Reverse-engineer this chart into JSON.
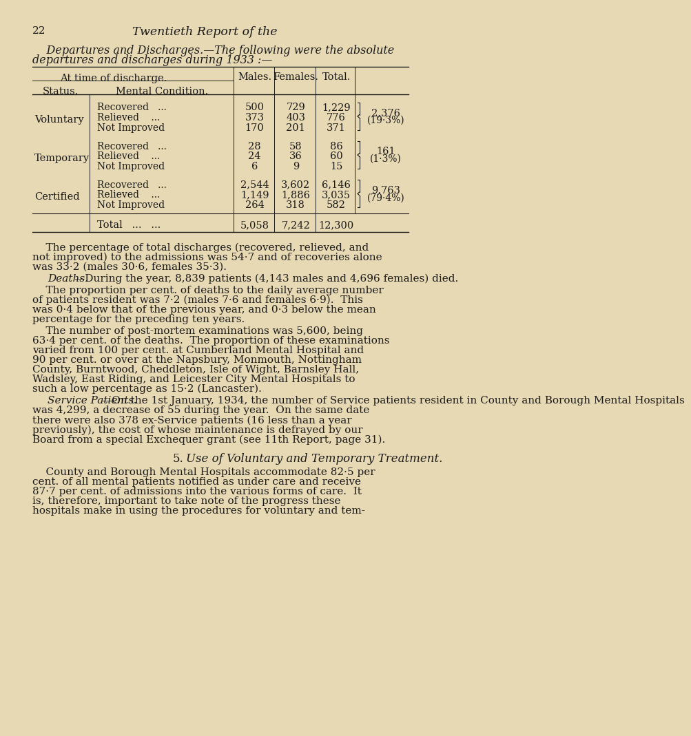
{
  "bg_color": "#e8d9b5",
  "text_color": "#1a1a1a",
  "page_number": "22",
  "header_italic": "Twentieth Report of the",
  "intro_line1": "    Departures and Discharges.—The following were the absolute",
  "intro_line2": "departures and discharges during 1933 :—",
  "rows": [
    {
      "status": "Voluntary",
      "conditions": [
        "Recovered   ...",
        "Relieved    ...",
        "Not Improved"
      ],
      "males": [
        "500",
        "373",
        "170"
      ],
      "females": [
        "729",
        "403",
        "201"
      ],
      "totals": [
        "1,229",
        "776",
        "371"
      ],
      "group_total": "2,376",
      "group_pct": "(19·3%)"
    },
    {
      "status": "Temporary",
      "conditions": [
        "Recovered   ...",
        "Relieved    ...",
        "Not Improved"
      ],
      "males": [
        "28",
        "24",
        "6"
      ],
      "females": [
        "58",
        "36",
        "9"
      ],
      "totals": [
        "86",
        "60",
        "15"
      ],
      "group_total": "161",
      "group_pct": "(1·3%)"
    },
    {
      "status": "Certified",
      "conditions": [
        "Recovered   ...",
        "Relieved    ...",
        "Not Improved"
      ],
      "males": [
        "2,544",
        "1,149",
        "264"
      ],
      "females": [
        "3,602",
        "1,886",
        "318"
      ],
      "totals": [
        "6,146",
        "3,035",
        "582"
      ],
      "group_total": "9,763",
      "group_pct": "(79·4%)"
    }
  ],
  "total_males": "5,058",
  "total_females": "7,242",
  "total_total": "12,300",
  "para1_lines": [
    "    The percentage of total discharges (recovered, relieved, and",
    "not improved) to the admissions was 54·7 and of recoveries alone",
    "was 33·2 (males 30·6, females 35·3)."
  ],
  "para2_italic": "Deaths.",
  "para2_rest": "—During the year, 8,839 patients (4,143 males and 4,696 females) died.",
  "para3_lines": [
    "    The proportion per cent. of deaths to the daily average number",
    "of patients resident was 7·2 (males 7·6 and females 6·9).  This",
    "was 0·4 below that of the previous year, and 0·3 below the mean",
    "percentage for the preceding ten years."
  ],
  "para4_lines": [
    "    The number of post-mortem examinations was 5,600, being",
    "63·4 per cent. of the deaths.  The proportion of these examinations",
    "varied from 100 per cent. at Cumberland Mental Hospital and",
    "90 per cent. or over at the Napsbury, Monmouth, Nottingham",
    "County, Burntwood, Cheddleton, Isle of Wight, Barnsley Hall,",
    "Wadsley, East Riding, and Leicester City Mental Hospitals to",
    "such a low percentage as 15·2 (Lancaster)."
  ],
  "para5_italic": "Service Patients.",
  "para5_rest_line1": "—On the 1st January, 1934, the number of Service patients resident in County and Borough Mental Hospitals",
  "para5_lines": [
    "was 4,299, a decrease of 55 during the year.  On the same date",
    "there were also 378 ex-Service patients (16 less than a year",
    "previously), the cost of whose maintenance is defrayed by our",
    "Board from a special Exchequer grant (see 11th Report, page 31)."
  ],
  "section5_num": "5.",
  "section5_italic": "Use of Voluntary and Temporary Treatment.",
  "para6_lines": [
    "    County and Borough Mental Hospitals accommodate 82·5 per",
    "cent. of all mental patients notified as under care and receive",
    "87·7 per cent. of admissions into the various forms of care.  It",
    "is, therefore, important to take note of the progress these",
    "hospitals make in using the procedures for voluntary and tem-"
  ]
}
